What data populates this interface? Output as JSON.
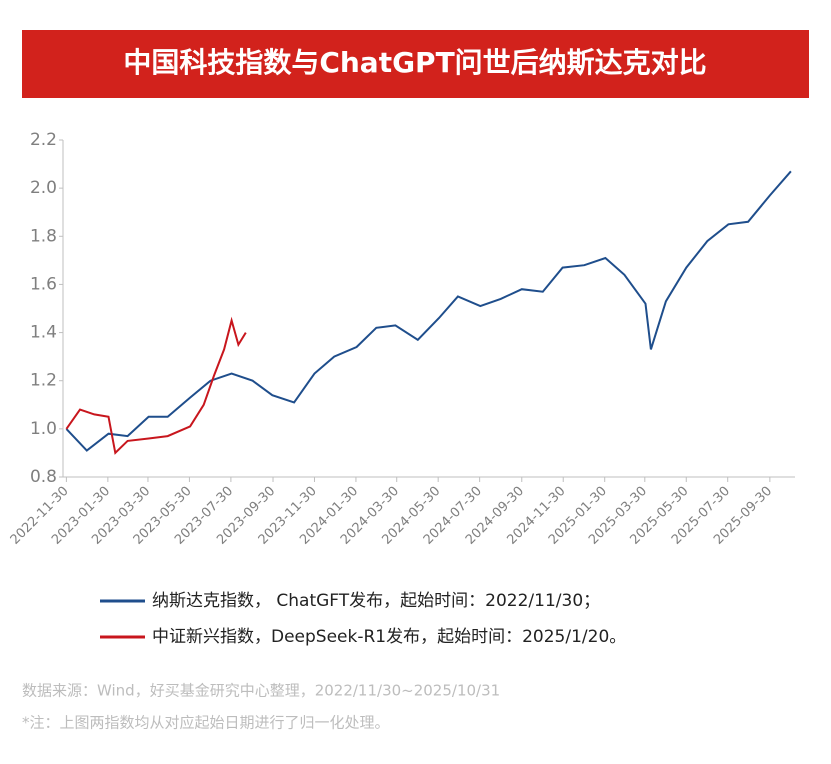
{
  "chart_data": {
    "type": "line",
    "title": "中国科技指数与ChatGPT问世后纳斯达克对比",
    "xlim": [
      "2022-11-25",
      "2025-11-06"
    ],
    "xticks": [
      "2022-11-30",
      "2023-01-30",
      "2023-03-30",
      "2023-05-30",
      "2023-07-30",
      "2023-09-30",
      "2023-11-30",
      "2024-01-30",
      "2024-03-30",
      "2024-05-30",
      "2024-07-30",
      "2024-09-30",
      "2024-11-30",
      "2025-01-30",
      "2025-03-30",
      "2025-05-30",
      "2025-07-30",
      "2025-09-30"
    ],
    "ylim": [
      0.8,
      2.2
    ],
    "yticks": [
      0.8,
      {
        "value": 1.0,
        "label": "1.0"
      },
      1.2,
      1.4,
      1.6,
      1.8,
      {
        "value": 2.0,
        "label": "2.0"
      },
      2.2
    ],
    "series": [
      {
        "name": "纳斯达克指数， ChatGFT发布，起始时间：2022/11/30；",
        "color": "#1f4e8c",
        "x": [
          "2022-11-30",
          "2022-12-30",
          "2023-01-31",
          "2023-02-28",
          "2023-03-31",
          "2023-04-28",
          "2023-05-31",
          "2023-06-30",
          "2023-07-31",
          "2023-08-31",
          "2023-09-29",
          "2023-10-31",
          "2023-11-30",
          "2023-12-29",
          "2024-01-31",
          "2024-02-29",
          "2024-03-28",
          "2024-04-30",
          "2024-05-31",
          "2024-06-28",
          "2024-07-31",
          "2024-08-30",
          "2024-09-30",
          "2024-10-31",
          "2024-11-29",
          "2024-12-31",
          "2025-01-31",
          "2025-02-28",
          "2025-03-31",
          "2025-04-08",
          "2025-04-30",
          "2025-05-30",
          "2025-06-30",
          "2025-07-31",
          "2025-08-29",
          "2025-09-30",
          "2025-10-31"
        ],
        "values": [
          1.0,
          0.91,
          0.98,
          0.97,
          1.05,
          1.05,
          1.13,
          1.2,
          1.23,
          1.2,
          1.14,
          1.11,
          1.23,
          1.3,
          1.34,
          1.42,
          1.43,
          1.37,
          1.46,
          1.55,
          1.51,
          1.54,
          1.58,
          1.57,
          1.67,
          1.68,
          1.71,
          1.64,
          1.52,
          1.33,
          1.53,
          1.67,
          1.78,
          1.85,
          1.86,
          1.97,
          2.07
        ]
      },
      {
        "name": "中证新兴指数，DeepSeek-R1发布，起始时间：2025/1/20。",
        "color": "#c8161d",
        "x": [
          "2022-11-30",
          "2022-12-20",
          "2023-01-10",
          "2023-01-31",
          "2023-02-10",
          "2023-02-28",
          "2023-03-31",
          "2023-04-28",
          "2023-05-31",
          "2023-06-20",
          "2023-07-05",
          "2023-07-20",
          "2023-07-31",
          "2023-08-10",
          "2023-08-21"
        ],
        "values": [
          1.0,
          1.08,
          1.06,
          1.05,
          0.9,
          0.95,
          0.96,
          0.97,
          1.01,
          1.1,
          1.22,
          1.33,
          1.45,
          1.35,
          1.4
        ]
      }
    ],
    "source": "数据来源：Wind，好买基金研究中心整理，2022/11/30~2025/10/31",
    "note": "*注：上图两指数均从对应起始日期进行了归一化处理。"
  }
}
